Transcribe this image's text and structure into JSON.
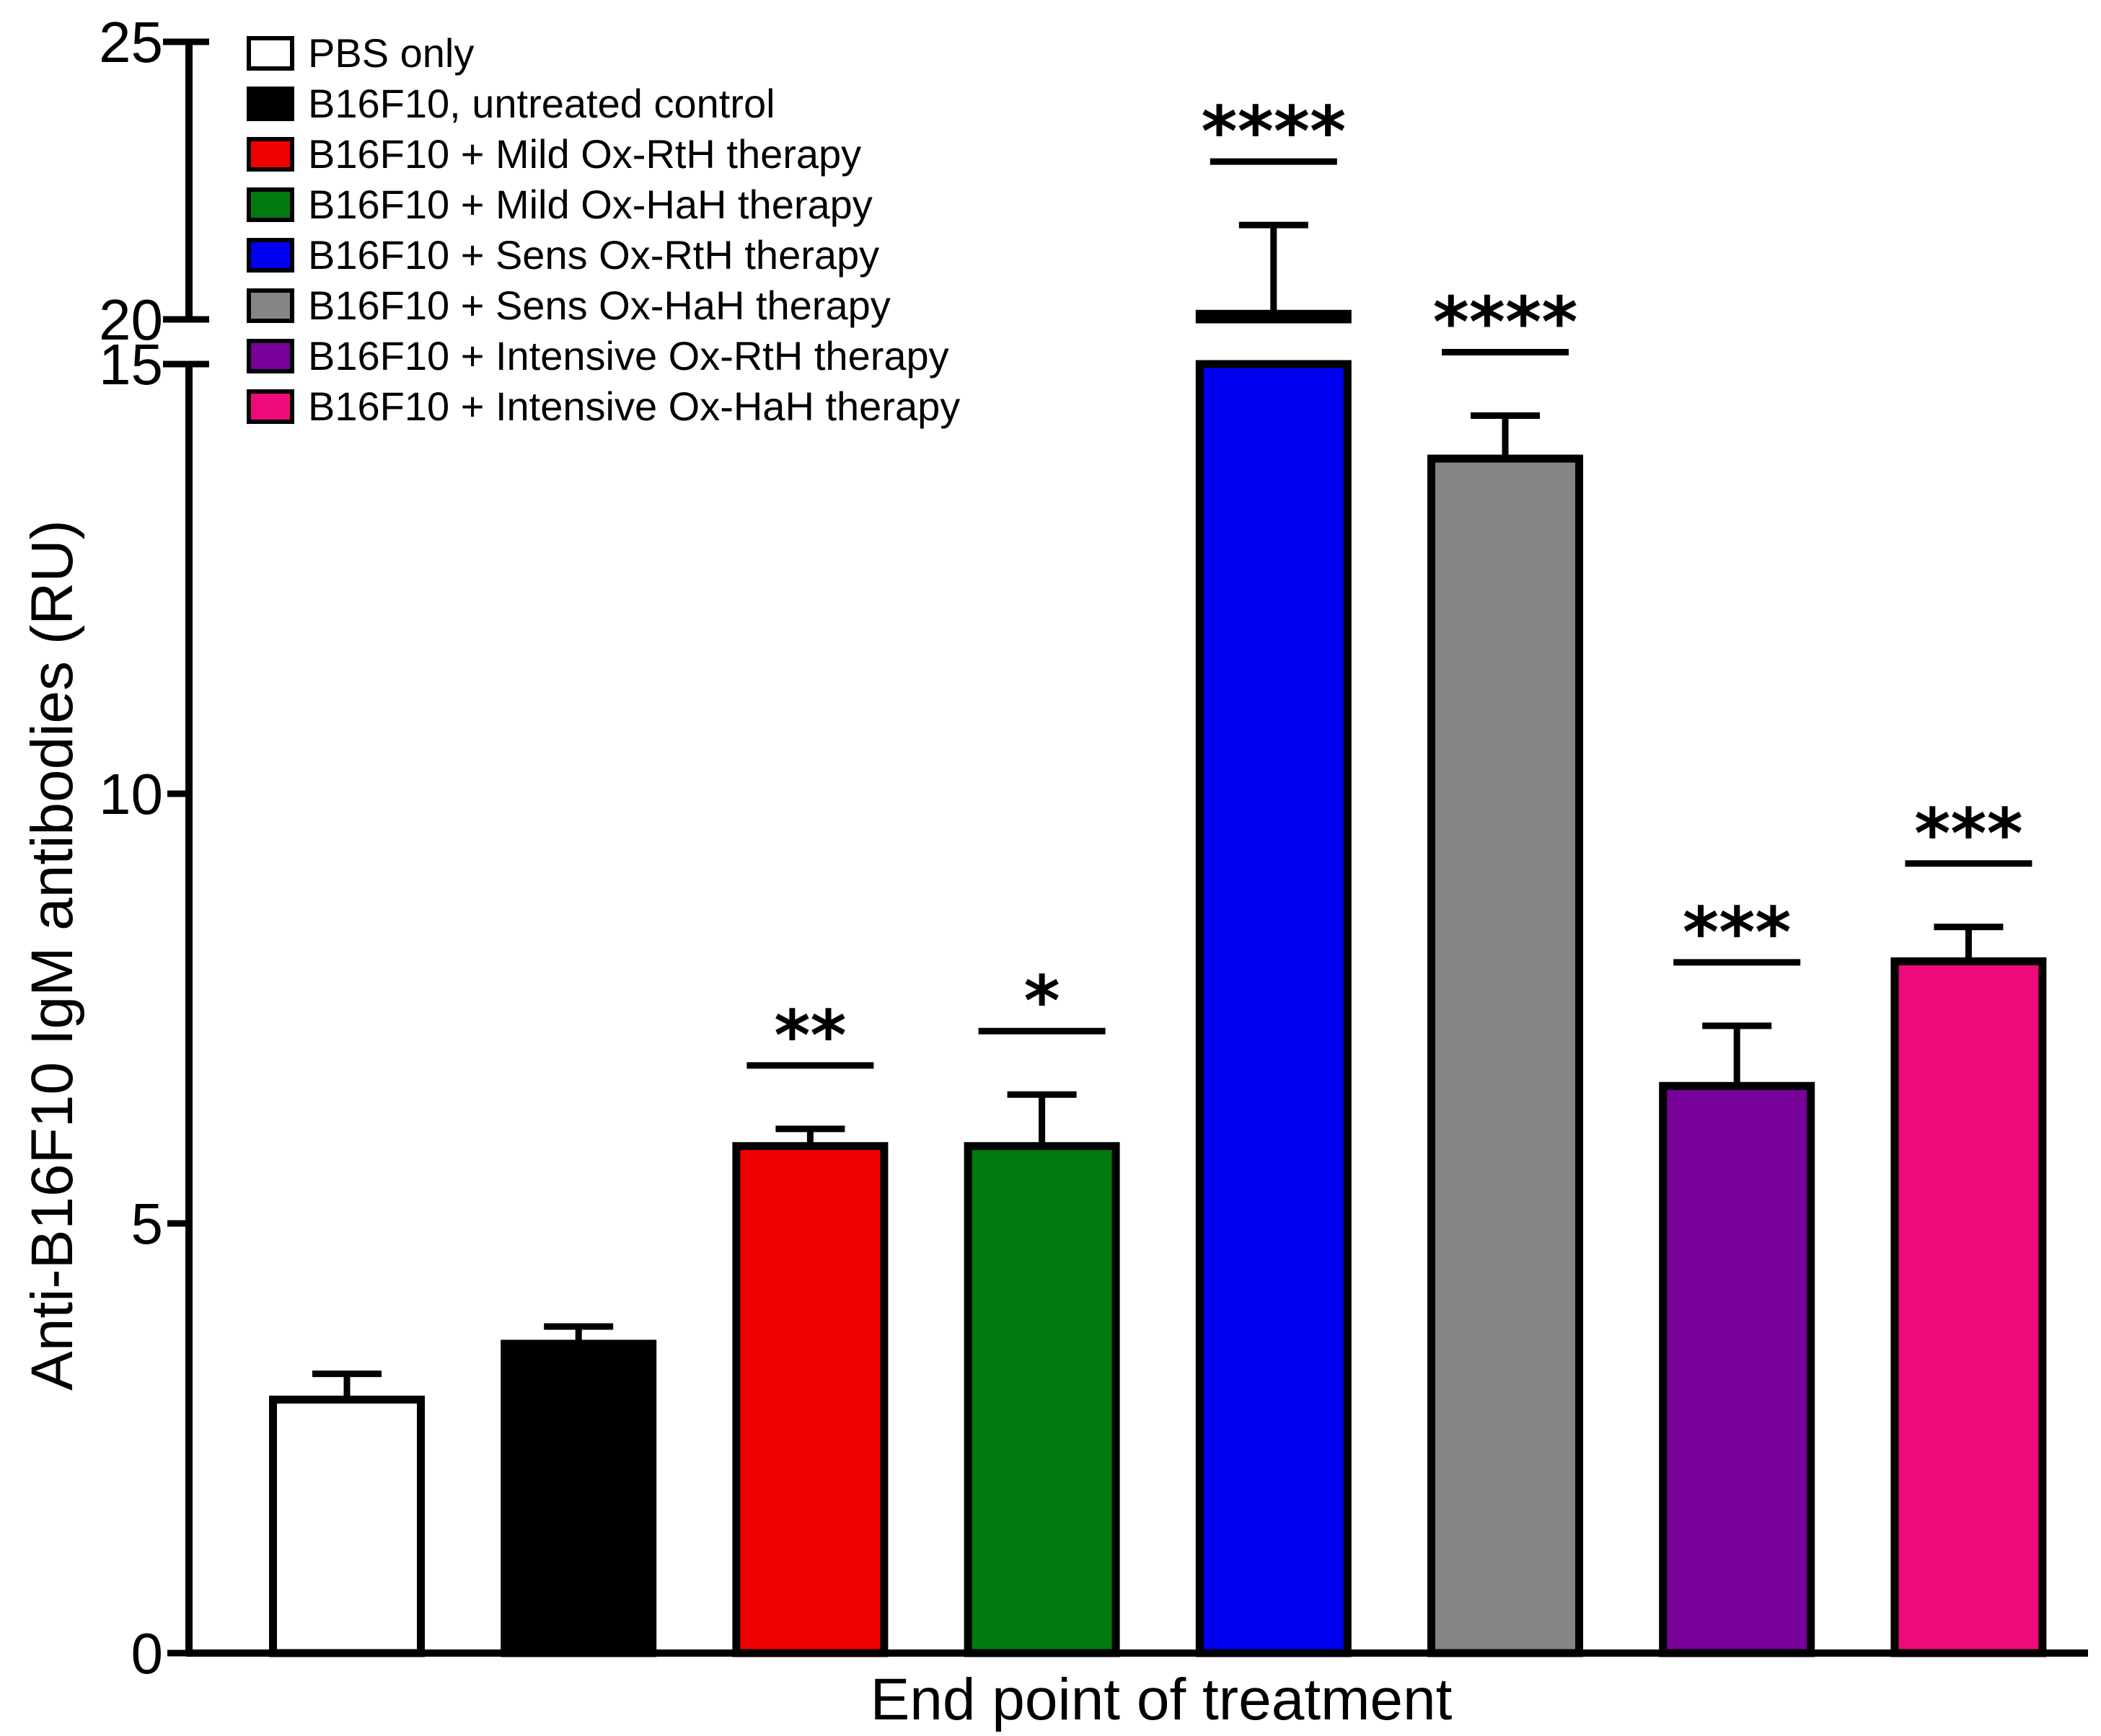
{
  "chart_data": {
    "type": "bar",
    "title": "",
    "xlabel": "End point of treatment",
    "ylabel": "Anti-B16F10 IgM antibodies (RU)",
    "ylim": [
      0,
      25
    ],
    "axis_break": [
      15,
      20
    ],
    "y_ticks_lower": [
      0,
      5,
      10,
      15
    ],
    "y_ticks_upper": [
      20,
      25
    ],
    "grid": false,
    "legend_position": "top-left",
    "categories": [
      "PBS only",
      "B16F10, untreated control",
      "B16F10 + Mild Ox-RtH therapy",
      "B16F10 + Mild Ox-HaH therapy",
      "B16F10 + Sens Ox-RtH therapy",
      "B16F10 + Sens Ox-HaH therapy",
      "B16F10 + Intensive Ox-RtH therapy",
      "B16F10 + Intensive Ox-HaH therapy"
    ],
    "values": [
      2.95,
      3.6,
      5.9,
      5.9,
      20.1,
      13.9,
      6.6,
      8.05
    ],
    "errors": [
      0.3,
      0.2,
      0.2,
      0.6,
      1.6,
      0.5,
      0.7,
      0.4
    ],
    "significance": [
      "",
      "",
      "**",
      "*",
      "****",
      "****",
      "***",
      "***"
    ],
    "colors": [
      "#ffffff",
      "#000000",
      "#ee0000",
      "#007a0e",
      "#0000f0",
      "#858585",
      "#770099",
      "#ee0a78"
    ]
  }
}
